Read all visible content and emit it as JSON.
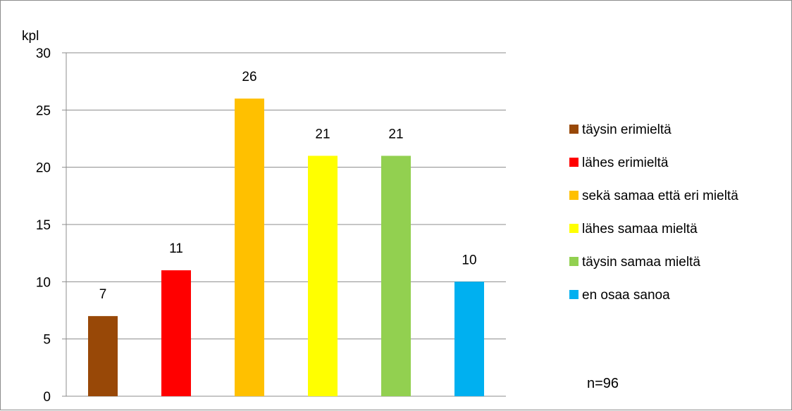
{
  "chart_data": {
    "type": "bar",
    "ylabel": "kpl",
    "ylim": [
      0,
      30
    ],
    "yticks": [
      0,
      5,
      10,
      15,
      20,
      25,
      30
    ],
    "grid": true,
    "legend_position": "right",
    "categories": [
      "täysin erimieltä",
      "lähes erimieltä",
      "sekä samaa että eri mieltä",
      "lähes samaa mieltä",
      "täysin samaa mieltä",
      "en osaa sanoa"
    ],
    "values": [
      7,
      11,
      26,
      21,
      21,
      10
    ],
    "colors": [
      "#984807",
      "#ff0000",
      "#ffc000",
      "#ffff00",
      "#92d050",
      "#00b0f0"
    ],
    "note": "n=96"
  }
}
